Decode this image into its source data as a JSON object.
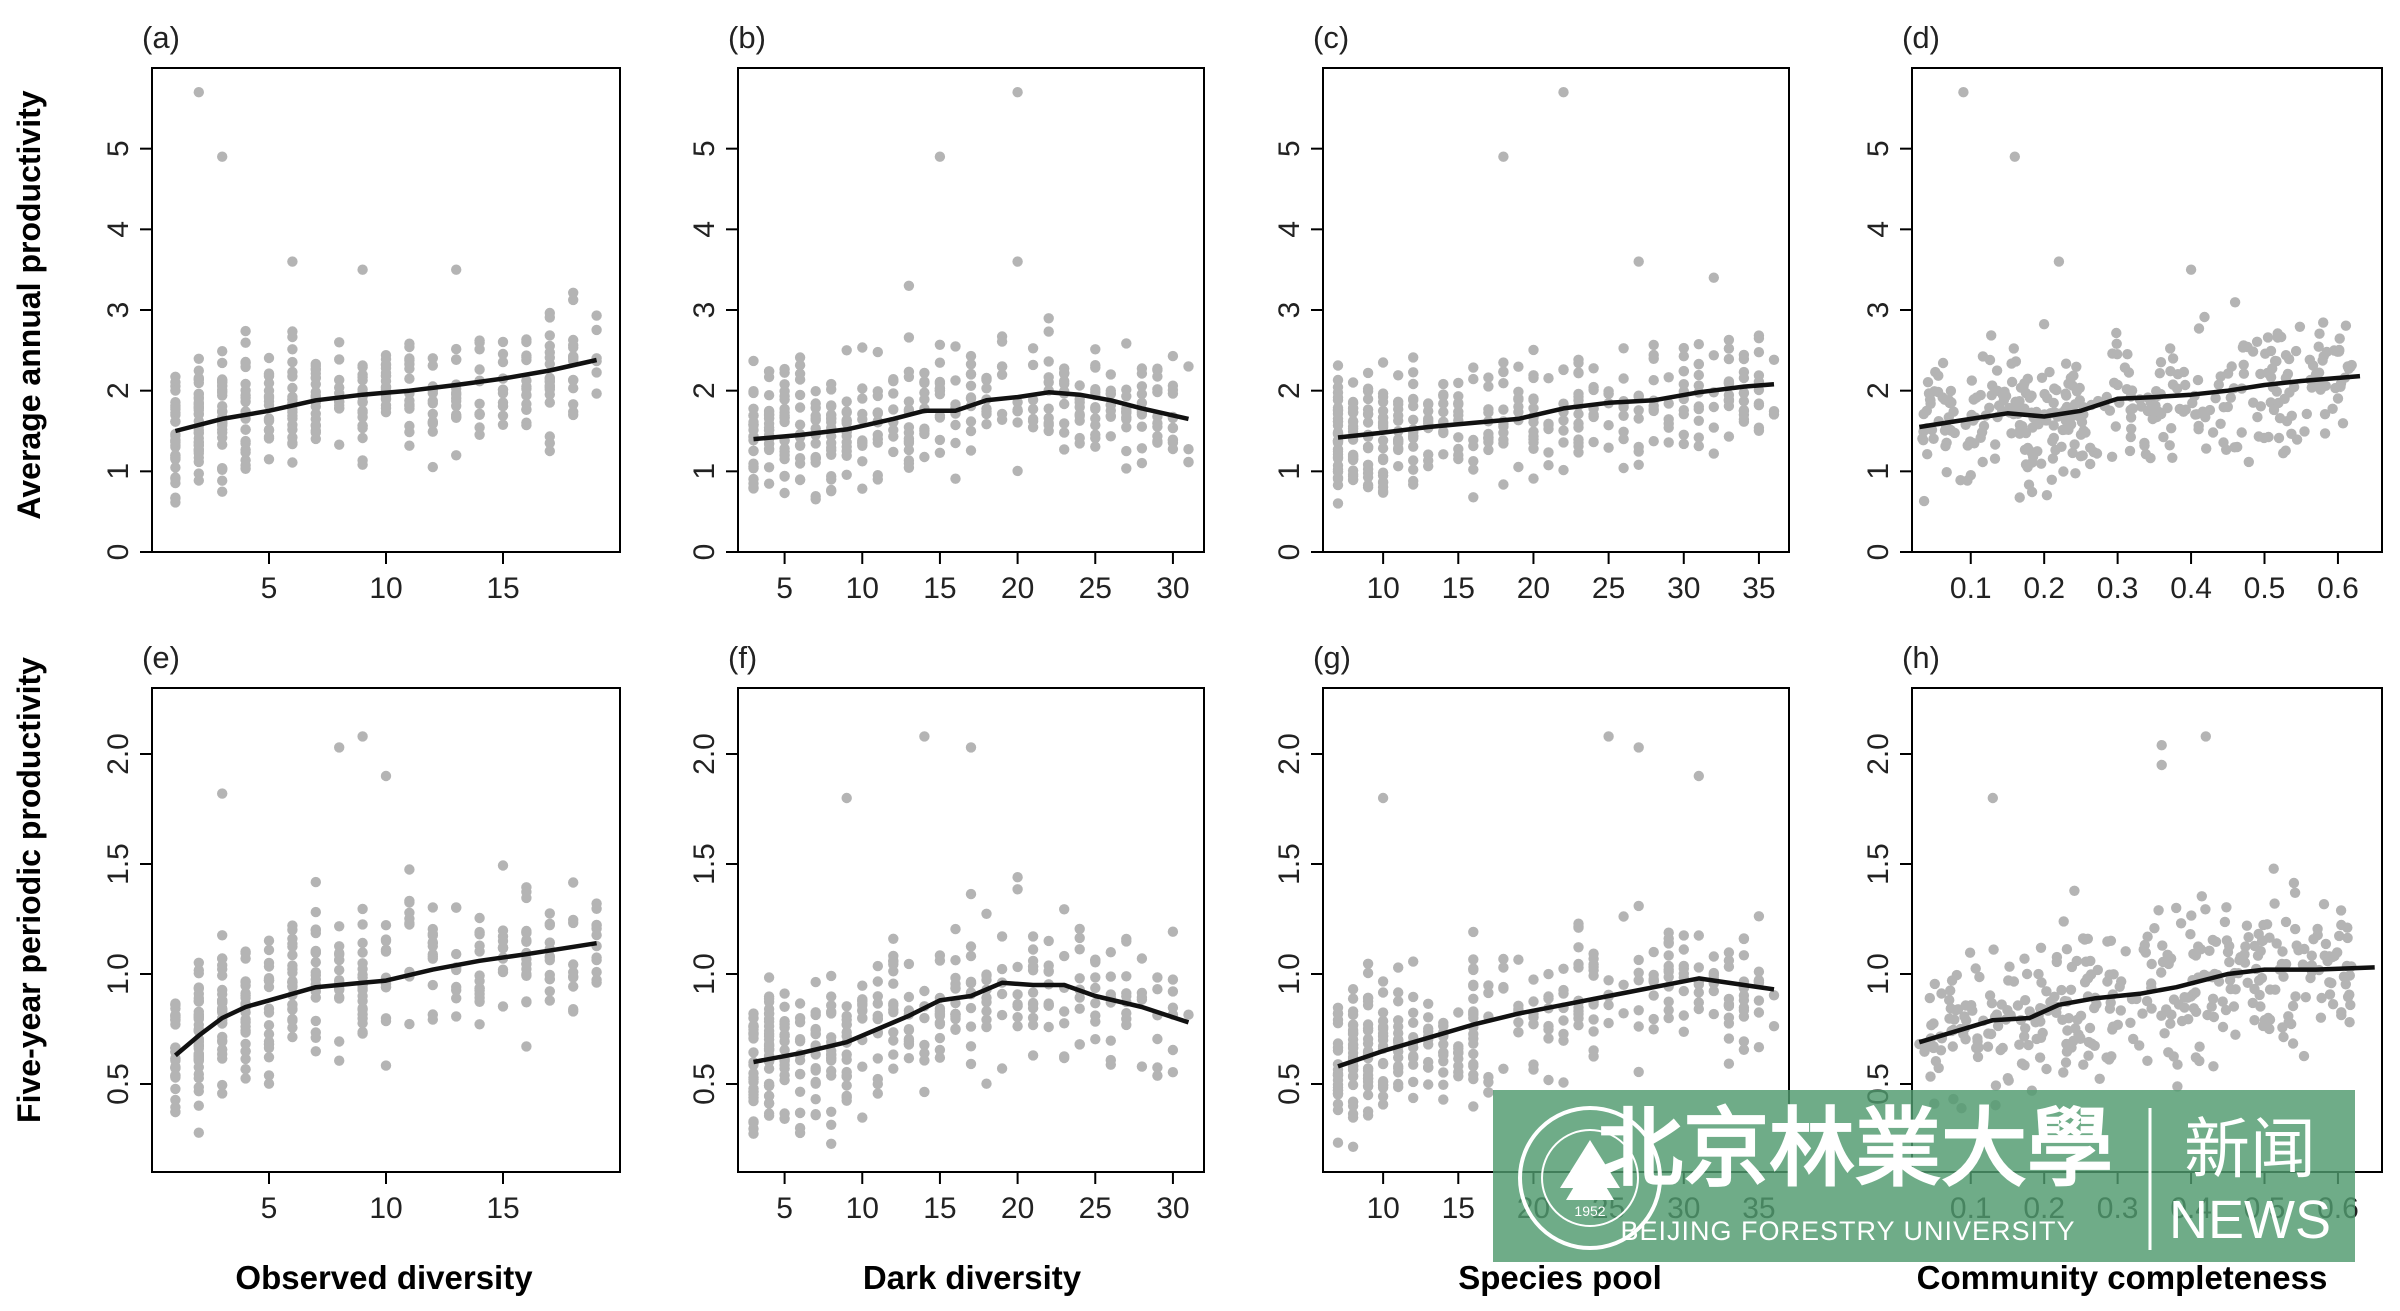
{
  "figure": {
    "ylabel_top": "Average annual productivity",
    "ylabel_bottom": "Five-year periodic productivity",
    "col_labels": [
      "Observed diversity",
      "Dark diversity",
      "Species pool",
      "Community completeness"
    ]
  },
  "watermark": {
    "name_cn": "北京林業大學",
    "section_cn": "新闻",
    "name_en": "BEIJING FORESTRY UNIVERSITY",
    "section_en": "NEWS",
    "seal_year": "1952",
    "seal_text": "BEIJING FORESTRY UNIVERSITY",
    "bg_color": "#4f9a6e",
    "text_color": "#ffffff"
  },
  "colors": {
    "points": "#b4b4b4",
    "line": "#111111",
    "frame": "#000000"
  },
  "chart_data": [
    {
      "type": "scatter",
      "panel": "(a)",
      "xlabel": "Observed diversity",
      "ylabel": "Average annual productivity",
      "xlim": [
        0,
        20
      ],
      "ylim": [
        0,
        6
      ],
      "xticks": [
        5,
        10,
        15
      ],
      "yticks": [
        0,
        1,
        2,
        3,
        4,
        5
      ],
      "x_range": [
        1,
        19
      ],
      "y_spread": [
        0.3,
        3.3
      ],
      "outliers": [
        [
          2,
          5.7
        ],
        [
          3,
          4.9
        ],
        [
          6,
          3.6
        ],
        [
          9,
          3.5
        ],
        [
          13,
          3.5
        ]
      ],
      "trend": {
        "x": [
          1,
          3,
          5,
          7,
          9,
          11,
          13,
          15,
          17,
          19
        ],
        "y": [
          1.5,
          1.65,
          1.75,
          1.88,
          1.95,
          2.0,
          2.07,
          2.15,
          2.25,
          2.38
        ]
      }
    },
    {
      "type": "scatter",
      "panel": "(b)",
      "xlabel": "Dark diversity",
      "ylabel": "Average annual productivity",
      "xlim": [
        2,
        32
      ],
      "ylim": [
        0,
        6
      ],
      "xticks": [
        5,
        10,
        15,
        20,
        25,
        30
      ],
      "yticks": [
        0,
        1,
        2,
        3,
        4,
        5
      ],
      "x_range": [
        3,
        31
      ],
      "y_spread": [
        0.3,
        3.3
      ],
      "outliers": [
        [
          20,
          5.7
        ],
        [
          15,
          4.9
        ],
        [
          20,
          3.6
        ],
        [
          13,
          3.3
        ]
      ],
      "trend": {
        "x": [
          3,
          6,
          9,
          12,
          14,
          16,
          18,
          20,
          22,
          24,
          26,
          28,
          31
        ],
        "y": [
          1.4,
          1.45,
          1.52,
          1.65,
          1.75,
          1.75,
          1.88,
          1.92,
          1.98,
          1.95,
          1.88,
          1.78,
          1.65
        ]
      }
    },
    {
      "type": "scatter",
      "panel": "(c)",
      "xlabel": "Species pool",
      "ylabel": "Average annual productivity",
      "xlim": [
        6,
        37
      ],
      "ylim": [
        0,
        6
      ],
      "xticks": [
        10,
        15,
        20,
        25,
        30,
        35
      ],
      "yticks": [
        0,
        1,
        2,
        3,
        4,
        5
      ],
      "x_range": [
        7,
        36
      ],
      "y_spread": [
        0.3,
        3.3
      ],
      "outliers": [
        [
          22,
          5.7
        ],
        [
          18,
          4.9
        ],
        [
          27,
          3.6
        ],
        [
          32,
          3.4
        ]
      ],
      "trend": {
        "x": [
          7,
          10,
          13,
          16,
          19,
          22,
          25,
          28,
          31,
          34,
          36
        ],
        "y": [
          1.42,
          1.48,
          1.55,
          1.6,
          1.65,
          1.78,
          1.85,
          1.88,
          1.98,
          2.05,
          2.08
        ]
      }
    },
    {
      "type": "scatter",
      "panel": "(d)",
      "xlabel": "Community completeness",
      "ylabel": "Average annual productivity",
      "xlim": [
        0.02,
        0.66
      ],
      "ylim": [
        0,
        6
      ],
      "xticks": [
        0.1,
        0.2,
        0.3,
        0.4,
        0.5,
        0.6
      ],
      "yticks": [
        0,
        1,
        2,
        3,
        4,
        5
      ],
      "x_range": [
        0.03,
        0.62
      ],
      "y_spread": [
        0.3,
        3.3
      ],
      "outliers": [
        [
          0.09,
          5.7
        ],
        [
          0.16,
          4.9
        ],
        [
          0.22,
          3.6
        ],
        [
          0.4,
          3.5
        ]
      ],
      "trend": {
        "x": [
          0.03,
          0.1,
          0.15,
          0.2,
          0.25,
          0.3,
          0.35,
          0.4,
          0.45,
          0.5,
          0.55,
          0.63
        ],
        "y": [
          1.55,
          1.65,
          1.72,
          1.68,
          1.75,
          1.9,
          1.92,
          1.95,
          2.0,
          2.07,
          2.12,
          2.18
        ]
      }
    },
    {
      "type": "scatter",
      "panel": "(e)",
      "xlabel": "Observed diversity",
      "ylabel": "Five-year periodic productivity",
      "xlim": [
        0,
        20
      ],
      "ylim": [
        0.1,
        2.3
      ],
      "xticks": [
        5,
        10,
        15
      ],
      "yticks": [
        0.5,
        1.0,
        1.5,
        2.0
      ],
      "x_range": [
        1,
        19
      ],
      "y_spread": [
        0.2,
        1.5
      ],
      "outliers": [
        [
          9,
          2.08
        ],
        [
          8,
          2.03
        ],
        [
          10,
          1.9
        ],
        [
          3,
          1.82
        ]
      ],
      "trend": {
        "x": [
          1,
          2,
          3,
          4,
          5,
          6,
          7,
          8,
          9,
          10,
          12,
          14,
          16,
          19
        ],
        "y": [
          0.63,
          0.72,
          0.8,
          0.85,
          0.88,
          0.91,
          0.94,
          0.95,
          0.96,
          0.97,
          1.02,
          1.06,
          1.09,
          1.14
        ]
      }
    },
    {
      "type": "scatter",
      "panel": "(f)",
      "xlabel": "Dark diversity",
      "ylabel": "Five-year periodic productivity",
      "xlim": [
        2,
        32
      ],
      "ylim": [
        0.1,
        2.3
      ],
      "xticks": [
        5,
        10,
        15,
        20,
        25,
        30
      ],
      "yticks": [
        0.5,
        1.0,
        1.5,
        2.0
      ],
      "x_range": [
        3,
        31
      ],
      "y_spread": [
        0.2,
        1.5
      ],
      "outliers": [
        [
          14,
          2.08
        ],
        [
          17,
          2.03
        ],
        [
          9,
          1.8
        ]
      ],
      "trend": {
        "x": [
          3,
          6,
          9,
          11,
          13,
          15,
          17,
          19,
          21,
          23,
          25,
          28,
          31
        ],
        "y": [
          0.6,
          0.64,
          0.69,
          0.75,
          0.81,
          0.88,
          0.9,
          0.96,
          0.95,
          0.95,
          0.9,
          0.85,
          0.78
        ]
      }
    },
    {
      "type": "scatter",
      "panel": "(g)",
      "xlabel": "Species pool",
      "ylabel": "Five-year periodic productivity",
      "xlim": [
        6,
        37
      ],
      "ylim": [
        0.1,
        2.3
      ],
      "xticks": [
        10,
        15,
        20,
        25,
        30,
        35
      ],
      "yticks": [
        0.5,
        1.0,
        1.5,
        2.0
      ],
      "x_range": [
        7,
        36
      ],
      "y_spread": [
        0.2,
        1.5
      ],
      "outliers": [
        [
          25,
          2.08
        ],
        [
          27,
          2.03
        ],
        [
          10,
          1.8
        ],
        [
          31,
          1.9
        ]
      ],
      "trend": {
        "x": [
          7,
          10,
          13,
          16,
          19,
          22,
          25,
          28,
          31,
          34,
          36
        ],
        "y": [
          0.58,
          0.65,
          0.71,
          0.77,
          0.82,
          0.86,
          0.9,
          0.94,
          0.98,
          0.95,
          0.93
        ]
      }
    },
    {
      "type": "scatter",
      "panel": "(h)",
      "xlabel": "Community completeness",
      "ylabel": "Five-year periodic productivity",
      "xlim": [
        0.02,
        0.66
      ],
      "ylim": [
        0.1,
        2.3
      ],
      "xticks": [
        0.1,
        0.2,
        0.3,
        0.4,
        0.5,
        0.6
      ],
      "yticks": [
        0.5,
        1.0,
        1.5,
        2.0
      ],
      "x_range": [
        0.03,
        0.62
      ],
      "y_spread": [
        0.2,
        1.5
      ],
      "outliers": [
        [
          0.36,
          2.04
        ],
        [
          0.42,
          2.08
        ],
        [
          0.36,
          1.95
        ],
        [
          0.13,
          1.8
        ]
      ],
      "trend": {
        "x": [
          0.03,
          0.08,
          0.13,
          0.18,
          0.22,
          0.27,
          0.33,
          0.38,
          0.45,
          0.5,
          0.57,
          0.65
        ],
        "y": [
          0.69,
          0.74,
          0.79,
          0.8,
          0.86,
          0.89,
          0.91,
          0.94,
          1.0,
          1.02,
          1.02,
          1.03
        ]
      }
    }
  ]
}
